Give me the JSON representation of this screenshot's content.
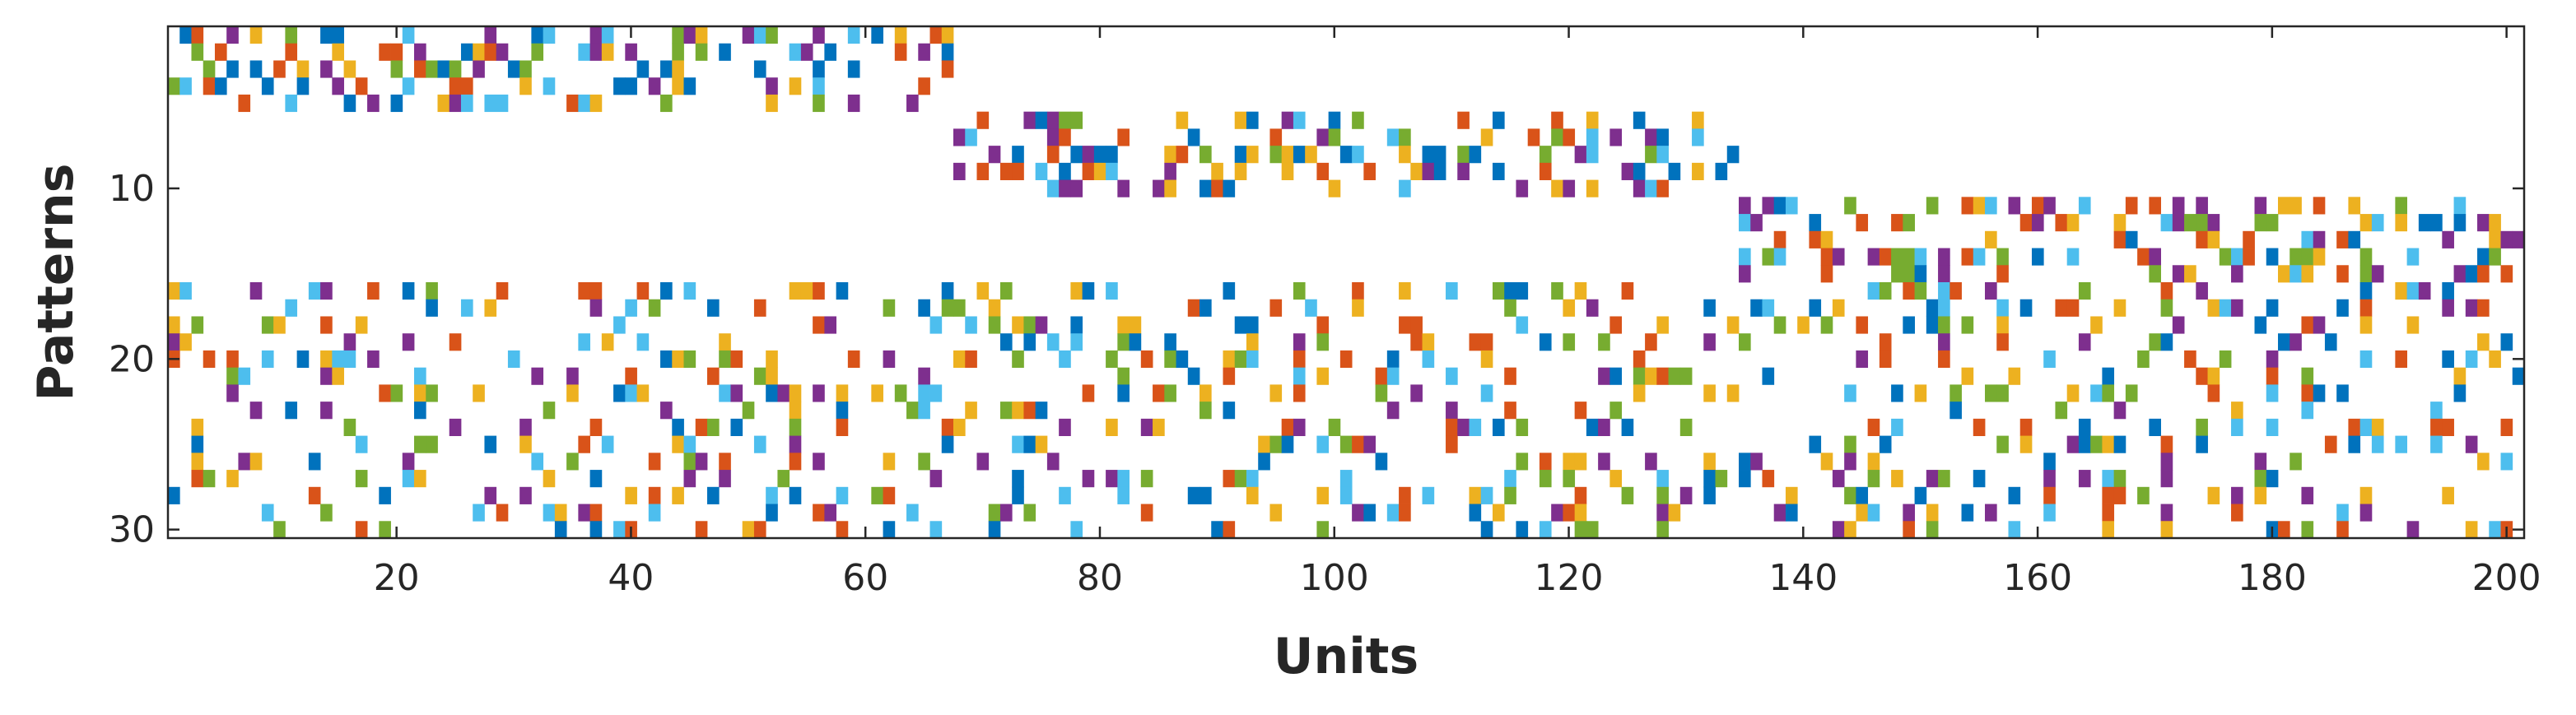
{
  "chart_data": {
    "type": "heatmap",
    "title": "",
    "xlabel": "Units",
    "ylabel": "Patterns",
    "xlim": [
      0.5,
      201.5
    ],
    "ylim": [
      0.5,
      30.5
    ],
    "y_reversed": true,
    "xticks": [
      20,
      40,
      60,
      80,
      100,
      120,
      140,
      160,
      180,
      200
    ],
    "yticks": [
      10,
      20,
      30
    ],
    "grid": false,
    "legend": "none",
    "n_units": 201,
    "n_patterns": 30,
    "palette": [
      "#0072BD",
      "#D95319",
      "#EDB120",
      "#7E2F8E",
      "#77AC30",
      "#4DBEEE"
    ],
    "groups": [
      {
        "patterns": [
          1,
          5
        ],
        "units": [
          1,
          67
        ],
        "density": 0.32
      },
      {
        "patterns": [
          6,
          10
        ],
        "units": [
          68,
          134
        ],
        "density": 0.32
      },
      {
        "patterns": [
          11,
          15
        ],
        "units": [
          135,
          201
        ],
        "density": 0.32
      },
      {
        "patterns": [
          16,
          30
        ],
        "units": [
          1,
          201
        ],
        "density": 0.2
      }
    ],
    "seed": 20240517
  }
}
